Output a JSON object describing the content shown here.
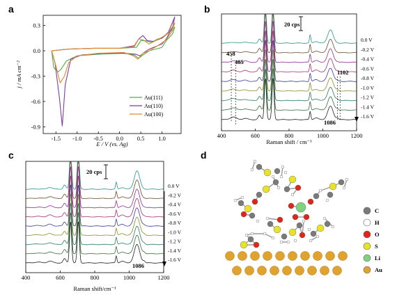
{
  "panels": {
    "a": "a",
    "b": "b",
    "c": "c",
    "d": "d"
  },
  "chart_data": [
    {
      "panel": "a",
      "type": "line",
      "title": "",
      "xlabel": "E / V (vs. Ag)",
      "ylabel": "j / mA cm⁻²",
      "xlim": [
        -1.8,
        1.45
      ],
      "ylim": [
        -0.98,
        0.42
      ],
      "xticks": [
        "-1.5",
        "-1.0",
        "-0.5",
        "0.0",
        "0.5",
        "1.0"
      ],
      "yticks": [
        "0.3",
        "0.0",
        "-0.3",
        "-0.6",
        "-0.9"
      ],
      "legend": "bottom-right",
      "series": [
        {
          "name": "Au(111)",
          "color": "#4daf4a",
          "points": [
            [
              -1.6,
              0.0
            ],
            [
              -1.2,
              0.02
            ],
            [
              -0.6,
              0.03
            ],
            [
              0.0,
              0.03
            ],
            [
              0.4,
              0.04
            ],
            [
              0.5,
              0.12
            ],
            [
              0.6,
              0.12
            ],
            [
              0.75,
              0.1
            ],
            [
              0.9,
              0.14
            ],
            [
              1.0,
              0.15
            ],
            [
              1.1,
              0.19
            ],
            [
              1.2,
              0.23
            ],
            [
              1.3,
              0.28
            ],
            [
              1.25,
              0.2
            ],
            [
              1.1,
              0.12
            ],
            [
              1.0,
              0.04
            ],
            [
              0.7,
              0.0
            ],
            [
              0.55,
              -0.05
            ],
            [
              0.45,
              -0.09
            ],
            [
              0.35,
              -0.05
            ],
            [
              0.1,
              -0.03
            ],
            [
              -0.5,
              -0.04
            ],
            [
              -1.0,
              -0.06
            ],
            [
              -1.25,
              -0.12
            ],
            [
              -1.38,
              -0.22
            ],
            [
              -1.45,
              -0.25
            ],
            [
              -1.55,
              -0.2
            ],
            [
              -1.6,
              0.0
            ]
          ]
        },
        {
          "name": "Au(110)",
          "color": "#7b3fa0",
          "points": [
            [
              -1.6,
              0.0
            ],
            [
              -1.2,
              0.02
            ],
            [
              -0.6,
              0.03
            ],
            [
              0.0,
              0.03
            ],
            [
              0.35,
              0.06
            ],
            [
              0.45,
              0.14
            ],
            [
              0.55,
              0.18
            ],
            [
              0.65,
              0.12
            ],
            [
              0.8,
              0.11
            ],
            [
              1.0,
              0.15
            ],
            [
              1.15,
              0.22
            ],
            [
              1.3,
              0.4
            ],
            [
              1.25,
              0.28
            ],
            [
              1.1,
              0.14
            ],
            [
              1.0,
              0.08
            ],
            [
              0.7,
              0.02
            ],
            [
              0.58,
              -0.02
            ],
            [
              0.48,
              -0.06
            ],
            [
              0.38,
              -0.04
            ],
            [
              0.1,
              -0.03
            ],
            [
              -0.4,
              -0.03
            ],
            [
              -0.9,
              -0.05
            ],
            [
              -1.15,
              -0.1
            ],
            [
              -1.28,
              -0.4
            ],
            [
              -1.35,
              -0.89
            ],
            [
              -1.42,
              -0.55
            ],
            [
              -1.52,
              -0.15
            ],
            [
              -1.6,
              0.0
            ]
          ]
        },
        {
          "name": "Au(100)",
          "color": "#e08a2e",
          "points": [
            [
              -1.6,
              0.0
            ],
            [
              -1.2,
              0.02
            ],
            [
              -0.6,
              0.03
            ],
            [
              0.0,
              0.03
            ],
            [
              0.35,
              0.05
            ],
            [
              0.45,
              0.14
            ],
            [
              0.55,
              0.13
            ],
            [
              0.7,
              0.08
            ],
            [
              0.85,
              0.12
            ],
            [
              1.0,
              0.16
            ],
            [
              1.15,
              0.21
            ],
            [
              1.3,
              0.33
            ],
            [
              1.25,
              0.24
            ],
            [
              1.1,
              0.13
            ],
            [
              0.9,
              0.06
            ],
            [
              0.7,
              0.0
            ],
            [
              0.55,
              -0.03
            ],
            [
              0.43,
              -0.1
            ],
            [
              0.33,
              -0.06
            ],
            [
              0.1,
              -0.02
            ],
            [
              -0.5,
              -0.03
            ],
            [
              -1.0,
              -0.06
            ],
            [
              -1.2,
              -0.14
            ],
            [
              -1.3,
              -0.3
            ],
            [
              -1.4,
              -0.38
            ],
            [
              -1.5,
              -0.18
            ],
            [
              -1.6,
              0.0
            ]
          ]
        }
      ]
    },
    {
      "panel": "b",
      "type": "line",
      "title": "",
      "xlabel": "Raman shift / cm⁻¹",
      "ylabel": "",
      "xlim": [
        400,
        1200
      ],
      "xticks": [
        "400",
        "600",
        "800",
        "1000",
        "1200"
      ],
      "scale_bar": "20 cps",
      "peak_labels": [
        "458",
        "485",
        "1102",
        "1086"
      ],
      "potentials": [
        "0.0 V",
        "-0.2 V",
        "-0.4 V",
        "-0.6 V",
        "-0.8 V",
        "-1.0 V",
        "-1.2 V",
        "-1.4 V",
        "-1.6 V"
      ],
      "series_colors": [
        "#2a8f8f",
        "#6b4a2a",
        "#8f2f8f",
        "#a0306a",
        "#3a3a9a",
        "#8a8a2a",
        "#2a7a5a",
        "#3a6a3a",
        "#222222"
      ]
    },
    {
      "panel": "c",
      "type": "line",
      "title": "",
      "xlabel": "Raman shift/cm⁻¹",
      "ylabel": "",
      "xlim": [
        400,
        1200
      ],
      "xticks": [
        "400",
        "600",
        "800",
        "1000",
        "1200"
      ],
      "scale_bar": "20 cps",
      "peak_labels": [
        "1086"
      ],
      "potentials": [
        "0.0 V",
        "-0.2 V",
        "-0.4 V",
        "-0.6 V",
        "-0.8 V",
        "-1.0 V",
        "-1.2 V",
        "-1.4 V",
        "-1.6 V"
      ],
      "series_colors": [
        "#2a8f8f",
        "#6b4a2a",
        "#8f2f8f",
        "#a0306a",
        "#3a3a9a",
        "#8a8a2a",
        "#2a7a5a",
        "#3a6a3a",
        "#222222"
      ]
    }
  ],
  "panel_d": {
    "legend": [
      {
        "label": "C",
        "color": "#7a7a7a"
      },
      {
        "label": "H",
        "color": "#ffffff"
      },
      {
        "label": "O",
        "color": "#e0251b"
      },
      {
        "label": "S",
        "color": "#e8e22a"
      },
      {
        "label": "Li",
        "color": "#7fd27f"
      },
      {
        "label": "Au",
        "color": "#e0a32e"
      }
    ]
  }
}
